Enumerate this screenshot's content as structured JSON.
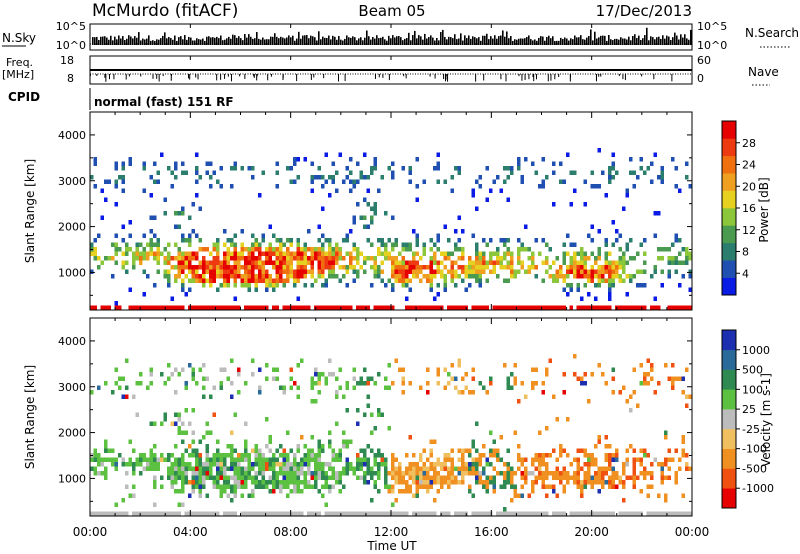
{
  "header": {
    "station": "McMurdo (fitACF)",
    "beam": "Beam 05",
    "date": "17/Dec/2013"
  },
  "summary": {
    "nsky_label": "N.Sky",
    "nsky_ticks": [
      "10^5",
      "10^0"
    ],
    "nsearch_label": "N.Search",
    "freq_label_1": "Freq.",
    "freq_label_2": "[MHz]",
    "freq_ticks": [
      "18",
      "8"
    ],
    "nave_ticks": [
      "60",
      "0"
    ],
    "nave_label": "Nave",
    "cpid_label": "CPID",
    "cpid_value": "normal (fast) 151 RF"
  },
  "colors": {
    "power": [
      "#0b1be6",
      "#1f4fb0",
      "#2b7d6e",
      "#4a9a50",
      "#8cc63a",
      "#e6d020",
      "#f0a020",
      "#f07010",
      "#ee3a10",
      "#e60000"
    ],
    "velocity": [
      "#e60000",
      "#f05010",
      "#f09020",
      "#f0c060",
      "#bcbcbc",
      "#5cc040",
      "#2e8a50",
      "#2a6a9a",
      "#1c2fb0"
    ],
    "ground_scatter": "#bcbcbc"
  },
  "chart_data": [
    {
      "type": "heatmap",
      "panel": "power",
      "ylabel": "Slant Range [km]",
      "colorbar_label": "Power [dB]",
      "colorbar_ticks": [
        "28",
        "24",
        "20",
        "16",
        "12",
        "8",
        "4"
      ],
      "colorbar_range": [
        0,
        32
      ],
      "y_ticks": [
        "4000",
        "3000",
        "2000",
        "1000"
      ],
      "ylim": [
        180,
        4500
      ],
      "xlim_hours": [
        0,
        24
      ],
      "grid": false
    },
    {
      "type": "heatmap",
      "panel": "velocity",
      "ylabel": "Slant Range [km]",
      "colorbar_label": "Velocity [m s-1]",
      "colorbar_ticks": [
        "1000",
        "500",
        "100",
        "25",
        "-25",
        "-100",
        "-500",
        "-1000"
      ],
      "y_ticks": [
        "4000",
        "3000",
        "2000",
        "1000"
      ],
      "ylim": [
        180,
        4500
      ],
      "xlim_hours": [
        0,
        24
      ],
      "x_ticks": [
        "00:00",
        "04:00",
        "08:00",
        "12:00",
        "16:00",
        "20:00",
        "00:00"
      ],
      "xlabel": "Time UT",
      "grid": false
    }
  ]
}
